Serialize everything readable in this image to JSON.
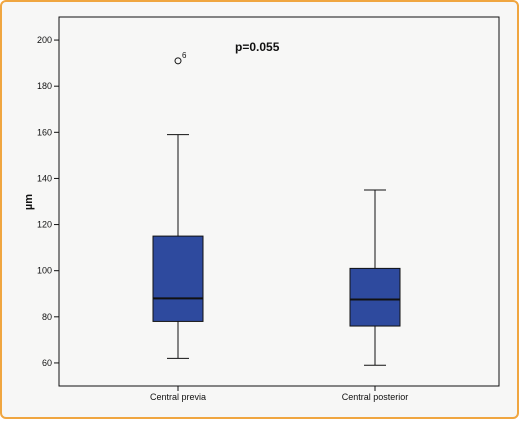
{
  "chart_data": {
    "type": "box",
    "ylabel": "µm",
    "xlabel": "",
    "ylim": [
      50,
      210
    ],
    "yticks": [
      60,
      80,
      100,
      120,
      140,
      160,
      180,
      200
    ],
    "annotation": "p=0.055",
    "box_color": "#2e4a9e",
    "categories": [
      "Central previa",
      "Central posterior"
    ],
    "boxes": [
      {
        "label": "Central previa",
        "whisker_low": 62,
        "q1": 78,
        "median": 88,
        "q3": 115,
        "whisker_high": 159,
        "outliers": [
          {
            "value": 191,
            "label": "6"
          }
        ]
      },
      {
        "label": "Central posterior",
        "whisker_low": 59,
        "q1": 76,
        "median": 87.5,
        "q3": 101,
        "whisker_high": 135,
        "outliers": []
      }
    ]
  }
}
